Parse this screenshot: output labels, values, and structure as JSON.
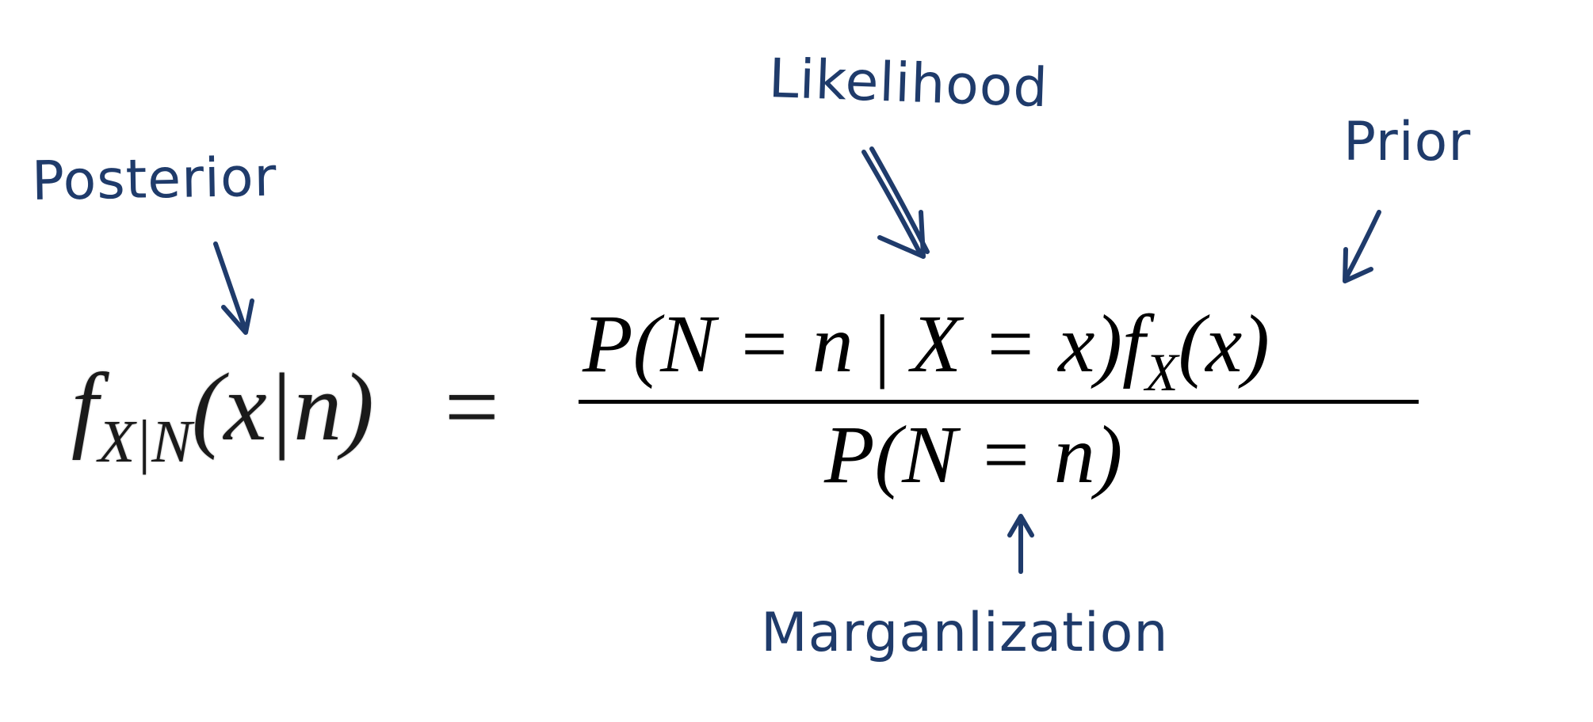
{
  "labels": {
    "posterior": "Posterior",
    "likelihood": "Likelihood",
    "prior": "Prior",
    "marginalization": "Marganlization"
  },
  "equation": {
    "lhs_f": "f",
    "lhs_sub": "X|N",
    "lhs_args": "(x|n)",
    "equals": "=",
    "numerator_left": "P(N = n",
    "numerator_bar": "|",
    "numerator_right": "X = x)",
    "numerator_f": "f",
    "numerator_sub": "X",
    "numerator_args": "(x)",
    "denominator": "P(N = n)"
  },
  "colors": {
    "annotation": "#1f3b6b",
    "equation": "#000000"
  }
}
